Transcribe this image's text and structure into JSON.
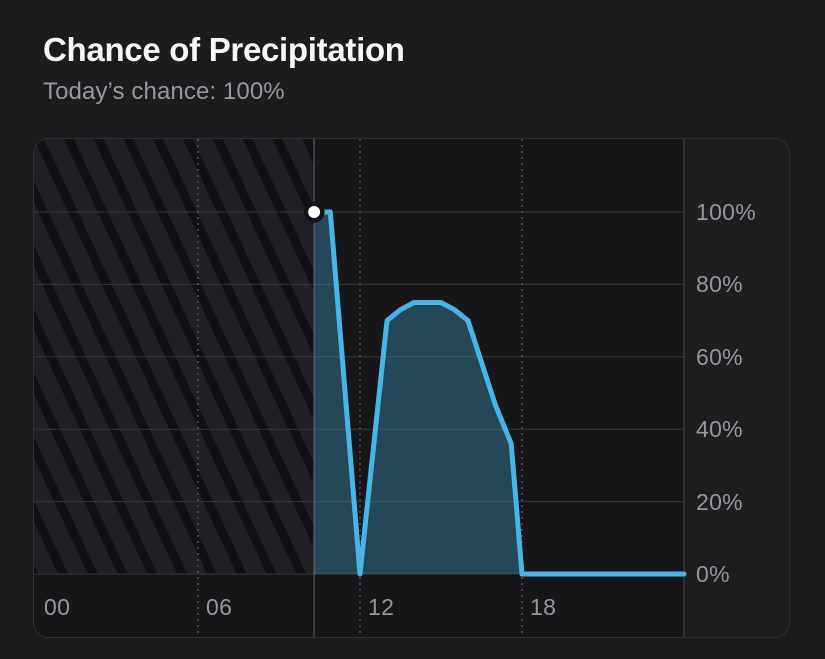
{
  "header": {
    "title": "Chance of Precipitation",
    "subtitle": "Today’s chance: 100%"
  },
  "colors": {
    "page_bg": "#1c1c1e",
    "card_bg": "#1e1e21",
    "card_border": "#303034",
    "plot_bg": "#17171a",
    "hatch_light": "#212125",
    "hatch_dark": "#111113",
    "grid_line": "#38383c",
    "plot_edge_line": "#47474c",
    "dashed_line": "#55555a",
    "now_line": "#4a4a4f",
    "accent_line": "#47b5e8",
    "area_fill": "rgba(71,181,232,0.30)",
    "dot": "#ffffff",
    "dot_halo": "#141416",
    "axis_label": "#96969b",
    "title": "#f7f7f7",
    "subtitle": "#98989d"
  },
  "chart_data": {
    "type": "area",
    "title": "Chance of Precipitation",
    "subtitle": "Today’s chance: 100%",
    "x_unit": "hour_of_day",
    "x_range": [
      0,
      24
    ],
    "y_range": [
      0,
      100
    ],
    "grid": true,
    "legend": false,
    "x_ticks": [
      {
        "label": "00",
        "hour": 0
      },
      {
        "label": "06",
        "hour": 6
      },
      {
        "label": "12",
        "hour": 12
      },
      {
        "label": "18",
        "hour": 18
      }
    ],
    "y_ticks": [
      {
        "label": "0%",
        "value": 0
      },
      {
        "label": "20%",
        "value": 20
      },
      {
        "label": "40%",
        "value": 40
      },
      {
        "label": "60%",
        "value": 60
      },
      {
        "label": "80%",
        "value": 80
      },
      {
        "label": "100%",
        "value": 100
      }
    ],
    "series": [
      {
        "name": "precipitation_chance_percent",
        "points": [
          [
            10.3,
            100
          ],
          [
            10.9,
            100
          ],
          [
            12,
            0
          ],
          [
            13,
            70
          ],
          [
            13.5,
            73
          ],
          [
            14,
            75
          ],
          [
            15,
            75
          ],
          [
            15.5,
            73
          ],
          [
            16,
            70
          ],
          [
            17,
            47
          ],
          [
            17.6,
            36
          ],
          [
            18,
            0
          ],
          [
            24,
            0
          ]
        ]
      }
    ],
    "now_marker": {
      "hour": 10.3,
      "value": 100
    },
    "past_hatched_until_hour": 10.3
  }
}
